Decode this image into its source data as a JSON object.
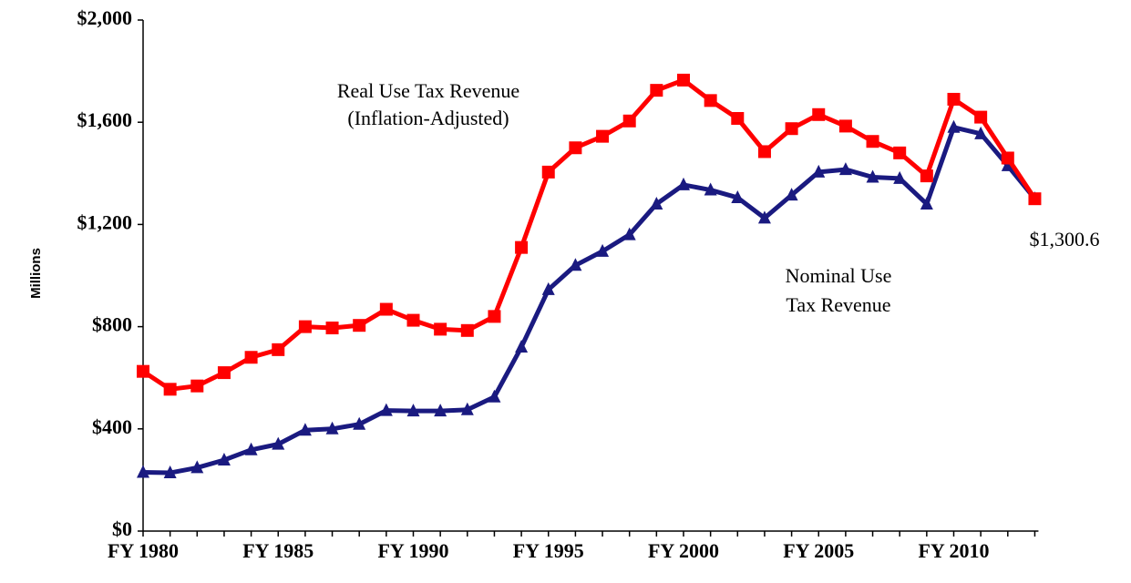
{
  "chart_data": {
    "type": "line",
    "y_label": "Millions",
    "categories": [
      "FY 1980",
      null,
      null,
      null,
      null,
      "FY 1985",
      null,
      null,
      null,
      null,
      "FY 1990",
      null,
      null,
      null,
      null,
      "FY 1995",
      null,
      null,
      null,
      null,
      "FY 2000",
      null,
      null,
      null,
      null,
      "FY 2005",
      null,
      null,
      null,
      null,
      "FY 2010",
      null,
      null,
      null
    ],
    "series": [
      {
        "name": "Nominal Use Tax Revenue",
        "color": "#1a1a80",
        "marker": "triangle",
        "values": [
          230,
          228,
          248,
          278,
          318,
          340,
          395,
          400,
          418,
          472,
          470,
          470,
          475,
          525,
          720,
          945,
          1040,
          1095,
          1160,
          1280,
          1355,
          1335,
          1305,
          1225,
          1315,
          1405,
          1415,
          1385,
          1380,
          1280,
          1580,
          1555,
          1430,
          1300.6
        ]
      },
      {
        "name": "Real Use Tax Revenue (Inflation-Adjusted)",
        "color": "#ff0000",
        "marker": "square",
        "values": [
          625,
          555,
          568,
          620,
          680,
          710,
          800,
          795,
          805,
          868,
          825,
          790,
          785,
          840,
          1110,
          1405,
          1500,
          1545,
          1605,
          1725,
          1765,
          1685,
          1615,
          1485,
          1575,
          1630,
          1585,
          1525,
          1480,
          1390,
          1690,
          1620,
          1460,
          1300.6
        ]
      }
    ],
    "annotations": [
      "Real Use Tax Revenue",
      "(Inflation-Adjusted)",
      "Nominal Use",
      "Tax Revenue",
      "$1,300.6"
    ],
    "ylim": [
      0,
      2000
    ],
    "yticks": [
      {
        "value": 0,
        "label": "$0"
      },
      {
        "value": 400,
        "label": "$400"
      },
      {
        "value": 800,
        "label": "$800"
      },
      {
        "value": 1200,
        "label": "$1,200"
      },
      {
        "value": 1600,
        "label": "$1,600"
      },
      {
        "value": 2000,
        "label": "$2,000"
      }
    ]
  }
}
